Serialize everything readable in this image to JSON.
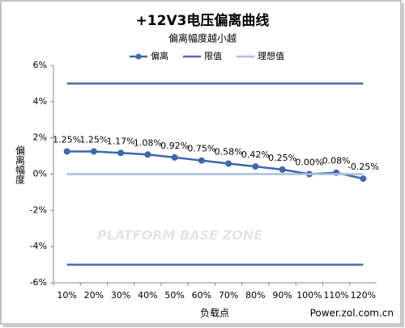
{
  "chart_data": {
    "type": "line",
    "title": "+12V3电压偏离曲线",
    "subtitle": "偏离幅度越小越",
    "y_label": "偏离幅度",
    "x_label": "负载点",
    "source": "Power.zol.com.cn",
    "watermark": "PLATFORM BASE ZONE",
    "categories": [
      "10%",
      "20%",
      "30%",
      "40%",
      "50%",
      "60%",
      "70%",
      "80%",
      "90%",
      "100%",
      "110%",
      "120%"
    ],
    "series": [
      {
        "name": "偏离",
        "color": "#3d67ae",
        "marker": true,
        "values": [
          1.25,
          1.25,
          1.17,
          1.08,
          0.92,
          0.75,
          0.58,
          0.42,
          0.25,
          0.0,
          0.08,
          -0.25
        ],
        "value_labels": [
          "1.25%",
          "1.25%",
          "1.17%",
          "1.08%",
          "0.92%",
          "0.75%",
          "0.58%",
          "0.42%",
          "0.25%",
          "0.00%",
          "0.08%",
          "-0.25%"
        ]
      },
      {
        "name": "限值",
        "color": "#4a6aae",
        "values": [
          5,
          5,
          5,
          5,
          5,
          5,
          5,
          5,
          5,
          5,
          5,
          5
        ]
      },
      {
        "color": "#4a6aae",
        "values": [
          -5,
          -5,
          -5,
          -5,
          -5,
          -5,
          -5,
          -5,
          -5,
          -5,
          -5,
          -5
        ]
      },
      {
        "name": "理想值",
        "color": "#a8bde2",
        "values": [
          0,
          0,
          0,
          0,
          0,
          0,
          0,
          0,
          0,
          0,
          0,
          0
        ]
      }
    ],
    "ylim": [
      -6,
      6
    ],
    "yticks": [
      {
        "value": -6,
        "label": "-6%"
      },
      {
        "value": -4,
        "label": "-4%"
      },
      {
        "value": -2,
        "label": "-2%"
      },
      {
        "value": 0,
        "label": "0%"
      },
      {
        "value": 2,
        "label": "2%"
      },
      {
        "value": 4,
        "label": "4%"
      },
      {
        "value": 6,
        "label": "6%"
      }
    ],
    "legend": "top"
  }
}
